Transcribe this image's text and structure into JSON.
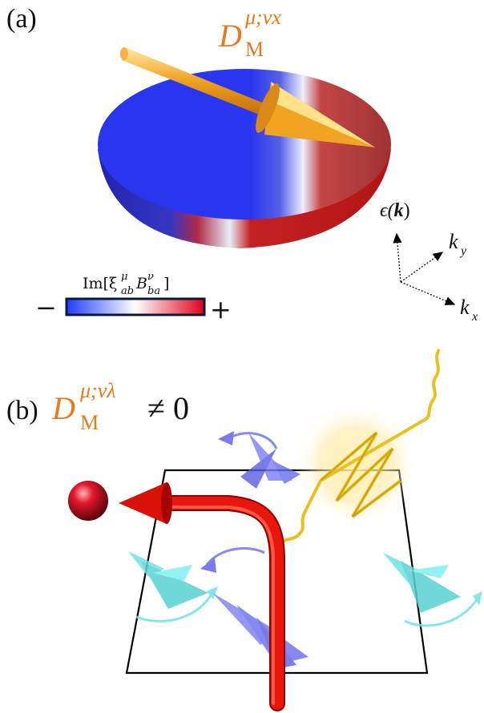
{
  "panel_a": {
    "label": "(a)",
    "dm_base": "D",
    "dm_sup": "μ;νx",
    "dm_sub": "M",
    "colorbar_label": "Im[ξ",
    "colorbar_label_sup1": "μ",
    "colorbar_label_sub1": "ab",
    "colorbar_label_mid": "B",
    "colorbar_label_sup2": "ν",
    "colorbar_label_sub2": "ba",
    "colorbar_label_end": "]",
    "colorbar_minus": "−",
    "colorbar_plus": "+",
    "colorbar_colors": [
      "#1f3cff",
      "#ffffff",
      "#e0001a"
    ],
    "axis_energy": "ϵ(k)",
    "axis_energy_base": "ϵ(",
    "axis_energy_k": "k",
    "axis_energy_end": ")",
    "axis_ky_base": "k",
    "axis_ky_sub": "y",
    "axis_kx_base": "k",
    "axis_kx_sub": "x"
  },
  "panel_b": {
    "label": "(b)",
    "dm_base": "D",
    "dm_sup": "μ;νλ",
    "dm_sub": "M",
    "relation": "≠ 0",
    "colors": {
      "electron": "#d0102a",
      "trajectory": "#e8160c",
      "photon": "#e8c020",
      "spin_blue": "#6a6cf0",
      "spin_cyan": "#6fe3e3",
      "accent_orange": "#e87a1e"
    }
  }
}
